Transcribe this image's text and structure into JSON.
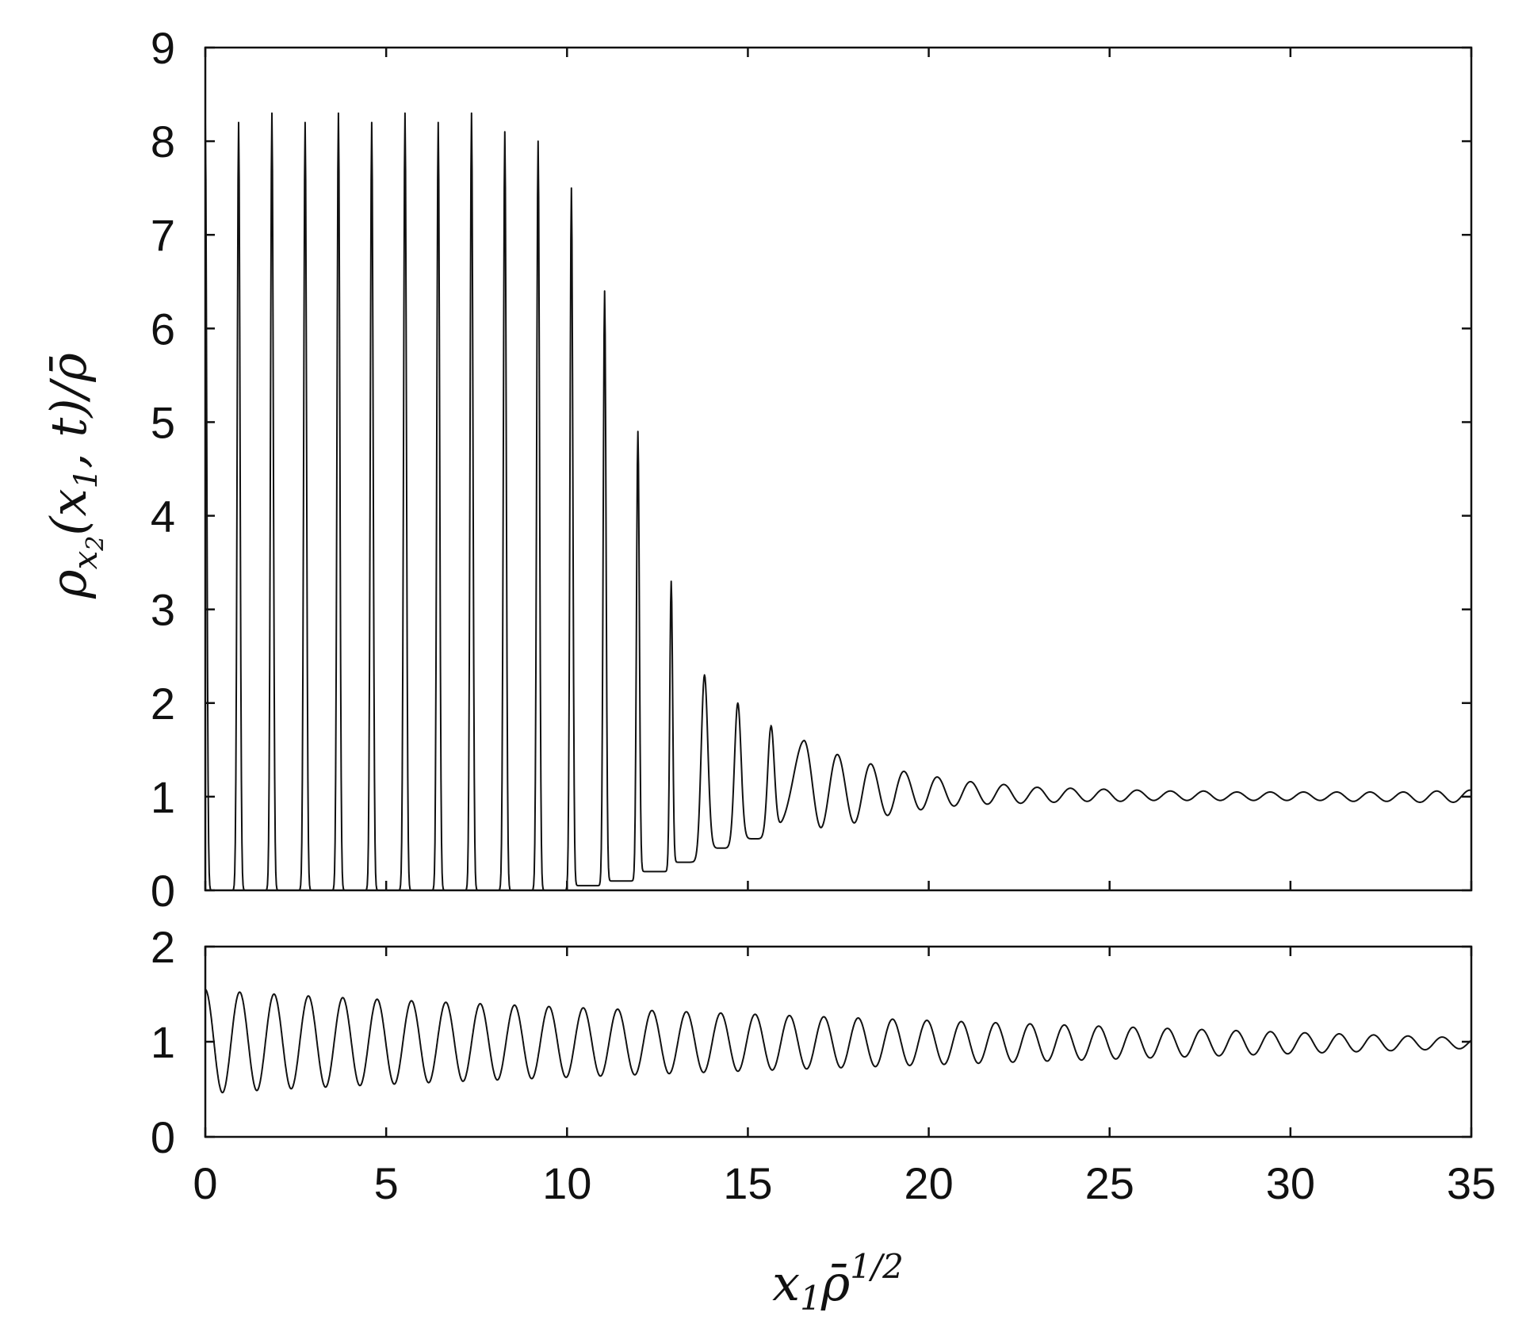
{
  "chart_data": [
    {
      "type": "line",
      "panel": "top",
      "ylabel": "ρx2(x1, t)/ρ̄",
      "xlim": [
        0,
        35
      ],
      "ylim": [
        0,
        9
      ],
      "xticks": [
        0,
        5,
        10,
        15,
        20,
        25,
        30,
        35
      ],
      "yticks": [
        0,
        1,
        2,
        3,
        4,
        5,
        6,
        7,
        8,
        9
      ],
      "xtick_labels": [
        "",
        "",
        "",
        "",
        "",
        "",
        "",
        ""
      ],
      "ytick_labels": [
        "0",
        "1",
        "2",
        "3",
        "4",
        "5",
        "6",
        "7",
        "8",
        "9"
      ],
      "grid": false,
      "peaks": {
        "x": [
          0.0,
          0.92,
          1.84,
          2.76,
          3.68,
          4.6,
          5.52,
          6.44,
          7.36,
          8.28,
          9.2,
          10.12,
          11.04,
          11.96,
          12.88,
          13.8,
          14.72,
          15.64,
          16.56,
          17.48,
          18.4,
          19.32,
          20.24,
          21.16,
          22.08,
          23.0,
          23.92,
          24.84,
          25.76,
          26.68,
          27.6,
          28.52,
          29.44,
          30.36,
          31.28,
          32.2,
          33.12,
          34.04,
          34.96
        ],
        "max": [
          8.2,
          8.2,
          8.3,
          8.2,
          8.3,
          8.2,
          8.3,
          8.2,
          8.3,
          8.1,
          8.0,
          7.5,
          6.4,
          4.9,
          3.3,
          2.3,
          2.0,
          1.75,
          1.6,
          1.45,
          1.35,
          1.27,
          1.21,
          1.16,
          1.13,
          1.1,
          1.09,
          1.08,
          1.07,
          1.06,
          1.06,
          1.05,
          1.05,
          1.05,
          1.05,
          1.05,
          1.05,
          1.06,
          1.07
        ],
        "min": [
          0.0,
          0.0,
          0.0,
          0.0,
          0.0,
          0.0,
          0.0,
          0.0,
          0.0,
          0.0,
          0.0,
          0.05,
          0.1,
          0.2,
          0.3,
          0.45,
          0.55,
          0.62,
          0.67,
          0.72,
          0.8,
          0.86,
          0.9,
          0.92,
          0.93,
          0.94,
          0.95,
          0.95,
          0.96,
          0.96,
          0.96,
          0.96,
          0.96,
          0.96,
          0.95,
          0.95,
          0.94,
          0.94,
          0.94
        ]
      }
    },
    {
      "type": "line",
      "panel": "bottom",
      "xlabel": "x1ρ̄1/2",
      "xlim": [
        0,
        35
      ],
      "ylim": [
        0,
        2
      ],
      "xticks": [
        0,
        5,
        10,
        15,
        20,
        25,
        30,
        35
      ],
      "yticks": [
        0,
        1,
        2
      ],
      "xtick_labels": [
        "0",
        "5",
        "10",
        "15",
        "20",
        "25",
        "30",
        "35"
      ],
      "ytick_labels": [
        "0",
        "1",
        "2"
      ],
      "grid": false,
      "oscillation": {
        "period": 0.95,
        "x_start": 0.0,
        "max_start": 1.55,
        "min_start": 0.45,
        "max_end": 1.04,
        "min_end": 0.93
      }
    }
  ]
}
